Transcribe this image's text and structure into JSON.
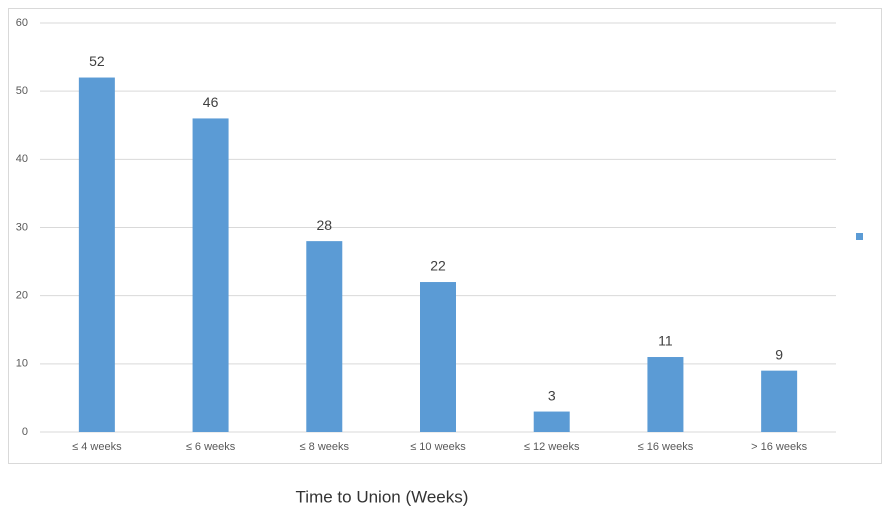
{
  "chart_data": {
    "type": "bar",
    "x_label": "Time to Union (Weeks)",
    "categories": [
      "≤ 4 weeks",
      "≤ 6 weeks",
      "≤ 8 weeks",
      "≤ 10 weeks",
      "≤ 12 weeks",
      "≤ 16 weeks",
      "> 16 weeks"
    ],
    "values": [
      52,
      46,
      28,
      22,
      3,
      11,
      9
    ],
    "color": "#5b9bd5",
    "ylim": [
      0,
      60
    ],
    "yticks": [
      0,
      10,
      20,
      30,
      40,
      50,
      60
    ],
    "grid": true,
    "legend": "right"
  }
}
